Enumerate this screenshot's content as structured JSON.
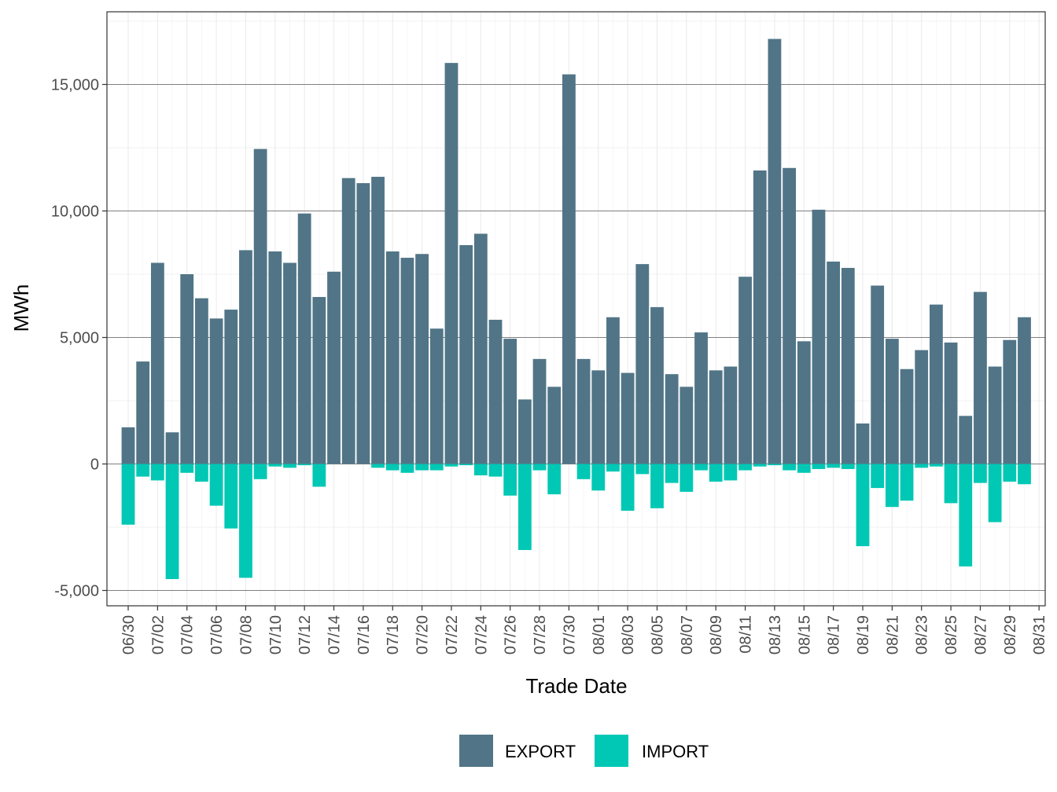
{
  "chart_data": {
    "type": "bar",
    "title": "",
    "xlabel": "Trade Date",
    "ylabel": "MWh",
    "ylim": [
      -5500,
      17500
    ],
    "yticks": [
      -5000,
      0,
      5000,
      10000,
      15000
    ],
    "ytick_labels": [
      "-5,000",
      "0",
      "5,000",
      "10,000",
      "15,000"
    ],
    "grid": true,
    "legend_position": "bottom",
    "colors": {
      "EXPORT": "#517587",
      "IMPORT": "#00c8b4"
    },
    "categories": [
      "06/30",
      "07/01",
      "07/02",
      "07/03",
      "07/04",
      "07/05",
      "07/06",
      "07/07",
      "07/08",
      "07/09",
      "07/10",
      "07/11",
      "07/12",
      "07/13",
      "07/14",
      "07/15",
      "07/16",
      "07/17",
      "07/18",
      "07/19",
      "07/20",
      "07/21",
      "07/22",
      "07/23",
      "07/24",
      "07/25",
      "07/26",
      "07/27",
      "07/28",
      "07/29",
      "07/30",
      "07/31",
      "08/01",
      "08/02",
      "08/03",
      "08/04",
      "08/05",
      "08/06",
      "08/07",
      "08/08",
      "08/09",
      "08/10",
      "08/11",
      "08/12",
      "08/13",
      "08/14",
      "08/15",
      "08/16",
      "08/17",
      "08/18",
      "08/19",
      "08/20",
      "08/21",
      "08/22",
      "08/23",
      "08/24",
      "08/25",
      "08/26",
      "08/27",
      "08/28",
      "08/29",
      "08/30",
      "08/31"
    ],
    "x_tick_labels": [
      "06/30",
      "07/02",
      "07/04",
      "07/06",
      "07/08",
      "07/10",
      "07/12",
      "07/14",
      "07/16",
      "07/18",
      "07/20",
      "07/22",
      "07/24",
      "07/26",
      "07/28",
      "07/30",
      "08/01",
      "08/03",
      "08/05",
      "08/07",
      "08/09",
      "08/11",
      "08/13",
      "08/15",
      "08/17",
      "08/19",
      "08/21",
      "08/23",
      "08/25",
      "08/27",
      "08/29",
      "08/31"
    ],
    "series": [
      {
        "name": "EXPORT",
        "values": [
          1450,
          4050,
          7950,
          1250,
          7500,
          6550,
          5750,
          6100,
          8450,
          12450,
          8400,
          7950,
          9900,
          6600,
          7600,
          11300,
          11100,
          11350,
          8400,
          8150,
          8300,
          5350,
          15850,
          8650,
          9100,
          5700,
          4950,
          2550,
          4150,
          3050,
          15400,
          4150,
          3700,
          5800,
          3600,
          7900,
          6200,
          3550,
          3050,
          5200,
          3700,
          3850,
          7400,
          11600,
          16800,
          11700,
          4850,
          10050,
          8000,
          7750,
          1600,
          7050,
          4950,
          3750,
          4500,
          6300,
          4800,
          1900,
          6800,
          3850,
          4900,
          5800,
          0
        ]
      },
      {
        "name": "IMPORT",
        "values": [
          -2400,
          -500,
          -650,
          -4550,
          -350,
          -700,
          -1650,
          -2550,
          -4500,
          -600,
          -100,
          -150,
          -50,
          -900,
          0,
          0,
          0,
          -150,
          -250,
          -350,
          -250,
          -250,
          -100,
          -50,
          -450,
          -500,
          -1250,
          -3400,
          -250,
          -1200,
          0,
          -600,
          -1050,
          -300,
          -1850,
          -400,
          -1750,
          -750,
          -1100,
          -250,
          -700,
          -650,
          -250,
          -100,
          -50,
          -250,
          -350,
          -200,
          -150,
          -200,
          -3250,
          -950,
          -1700,
          -1450,
          -150,
          -100,
          -1550,
          -4050,
          -750,
          -2300,
          -700,
          -800,
          0
        ]
      }
    ]
  }
}
